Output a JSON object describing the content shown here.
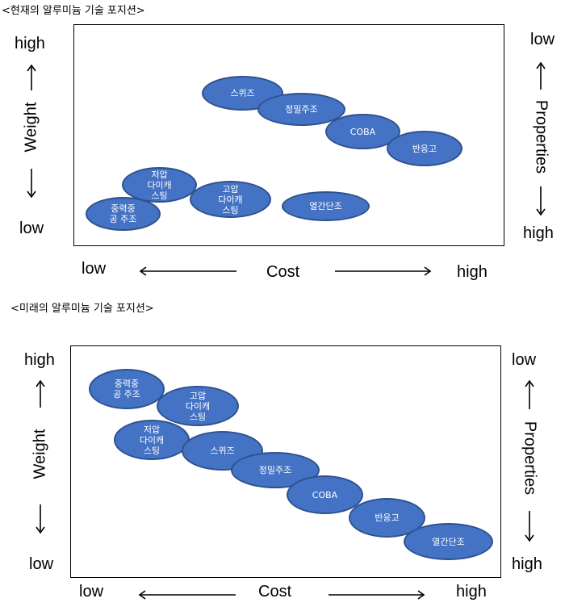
{
  "current": {
    "title": "<현재의 알루미늄 기술 포지션>",
    "left_high": "high",
    "left_low": "low",
    "left_axis": "Weight",
    "right_low": "low",
    "right_high": "high",
    "right_axis": "Properties",
    "x_low": "low",
    "x_axis": "Cost",
    "x_high": "high",
    "items": [
      {
        "label": "스퀴즈"
      },
      {
        "label": "정밀주조"
      },
      {
        "label": "COBA"
      },
      {
        "label": "반응고"
      },
      {
        "label": "저압\n다이캐\n스팅"
      },
      {
        "label": "고압\n다이캐\n스팅"
      },
      {
        "label": "중력중\n공 주조"
      },
      {
        "label": "열간단조"
      }
    ]
  },
  "future": {
    "title": "<미래의 알루미늄 기술 포지션>",
    "left_high": "high",
    "left_low": "low",
    "left_axis": "Weight",
    "right_low": "low",
    "right_high": "high",
    "right_axis": "Properties",
    "x_low": "low",
    "x_axis": "Cost",
    "x_high": "high",
    "items": [
      {
        "label": "중력중\n공 주조"
      },
      {
        "label": "고압\n다이캐\n스팅"
      },
      {
        "label": "저압\n다이캐\n스팅"
      },
      {
        "label": "스퀴즈"
      },
      {
        "label": "정밀주조"
      },
      {
        "label": "COBA"
      },
      {
        "label": "반응고"
      },
      {
        "label": "열간단조"
      }
    ]
  },
  "colors": {
    "ellipse_fill": "#4472c4",
    "ellipse_border": "#2f528f"
  }
}
